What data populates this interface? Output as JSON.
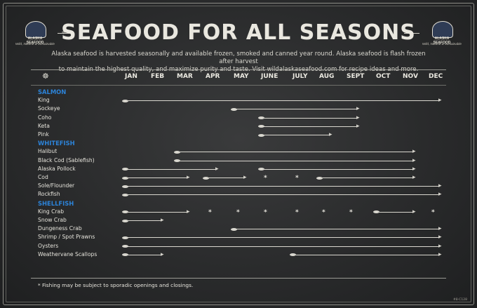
{
  "title": "SEAFOOD FOR ALL SEASONS",
  "intro_line1": "Alaska seafood is harvested seasonally and available frozen, smoked and canned year round. Alaska seafood is flash frozen after harvest",
  "intro_line2": "to maintain the highest quality, and maximize purity and taste. Visit wildalaskaseafood.com for recipe ideas and more.",
  "logo": {
    "name": "ALASKA SEAFOOD",
    "tagline": "Wild, Natural & Sustainable"
  },
  "months": [
    "JAN",
    "FEB",
    "MAR",
    "APR",
    "MAY",
    "JUNE",
    "JULY",
    "AUG",
    "SEPT",
    "OCT",
    "NOV",
    "DEC"
  ],
  "categories": [
    {
      "label": "SALMON",
      "items": [
        {
          "name": "King",
          "runs": [
            [
              1,
              12
            ]
          ]
        },
        {
          "name": "Sockeye",
          "runs": [
            [
              5,
              9
            ]
          ]
        },
        {
          "name": "Coho",
          "runs": [
            [
              6,
              9
            ]
          ]
        },
        {
          "name": "Keta",
          "runs": [
            [
              6,
              9
            ]
          ]
        },
        {
          "name": "Pink",
          "runs": [
            [
              6,
              8
            ]
          ]
        }
      ]
    },
    {
      "label": "WHITEFISH",
      "items": [
        {
          "name": "Halibut",
          "runs": [
            [
              3,
              11
            ]
          ]
        },
        {
          "name": "Black Cod (Sablefish)",
          "runs": [
            [
              3,
              11
            ]
          ]
        },
        {
          "name": "Alaska Pollock",
          "runs": [
            [
              1,
              4
            ],
            [
              6,
              11
            ]
          ]
        },
        {
          "name": "Cod",
          "runs": [
            [
              1,
              3
            ],
            [
              4,
              5
            ],
            [
              8,
              11
            ]
          ],
          "asterisks": [
            6,
            7
          ]
        },
        {
          "name": "Sole/Flounder",
          "runs": [
            [
              1,
              12
            ]
          ]
        },
        {
          "name": "Rockfish",
          "runs": [
            [
              1,
              12
            ]
          ]
        }
      ]
    },
    {
      "label": "SHELLFISH",
      "items": [
        {
          "name": "King Crab",
          "runs": [
            [
              1,
              3
            ],
            [
              10,
              11
            ]
          ],
          "asterisks": [
            4,
            5,
            6,
            7,
            8,
            9,
            12
          ]
        },
        {
          "name": "Snow Crab",
          "runs": [
            [
              1,
              2
            ]
          ]
        },
        {
          "name": "Dungeness Crab",
          "runs": [
            [
              5,
              12
            ]
          ]
        },
        {
          "name": "Shrimp / Spot Prawns",
          "runs": [
            [
              1,
              12
            ]
          ]
        },
        {
          "name": "Oysters",
          "runs": [
            [
              1,
              12
            ]
          ]
        },
        {
          "name": "Weathervane Scallops",
          "runs": [
            [
              1,
              2
            ],
            [
              7,
              12
            ]
          ]
        }
      ]
    }
  ],
  "footnote": "* Fishing may be subject to sporadic openings and closings.",
  "code": "#8-C128"
}
